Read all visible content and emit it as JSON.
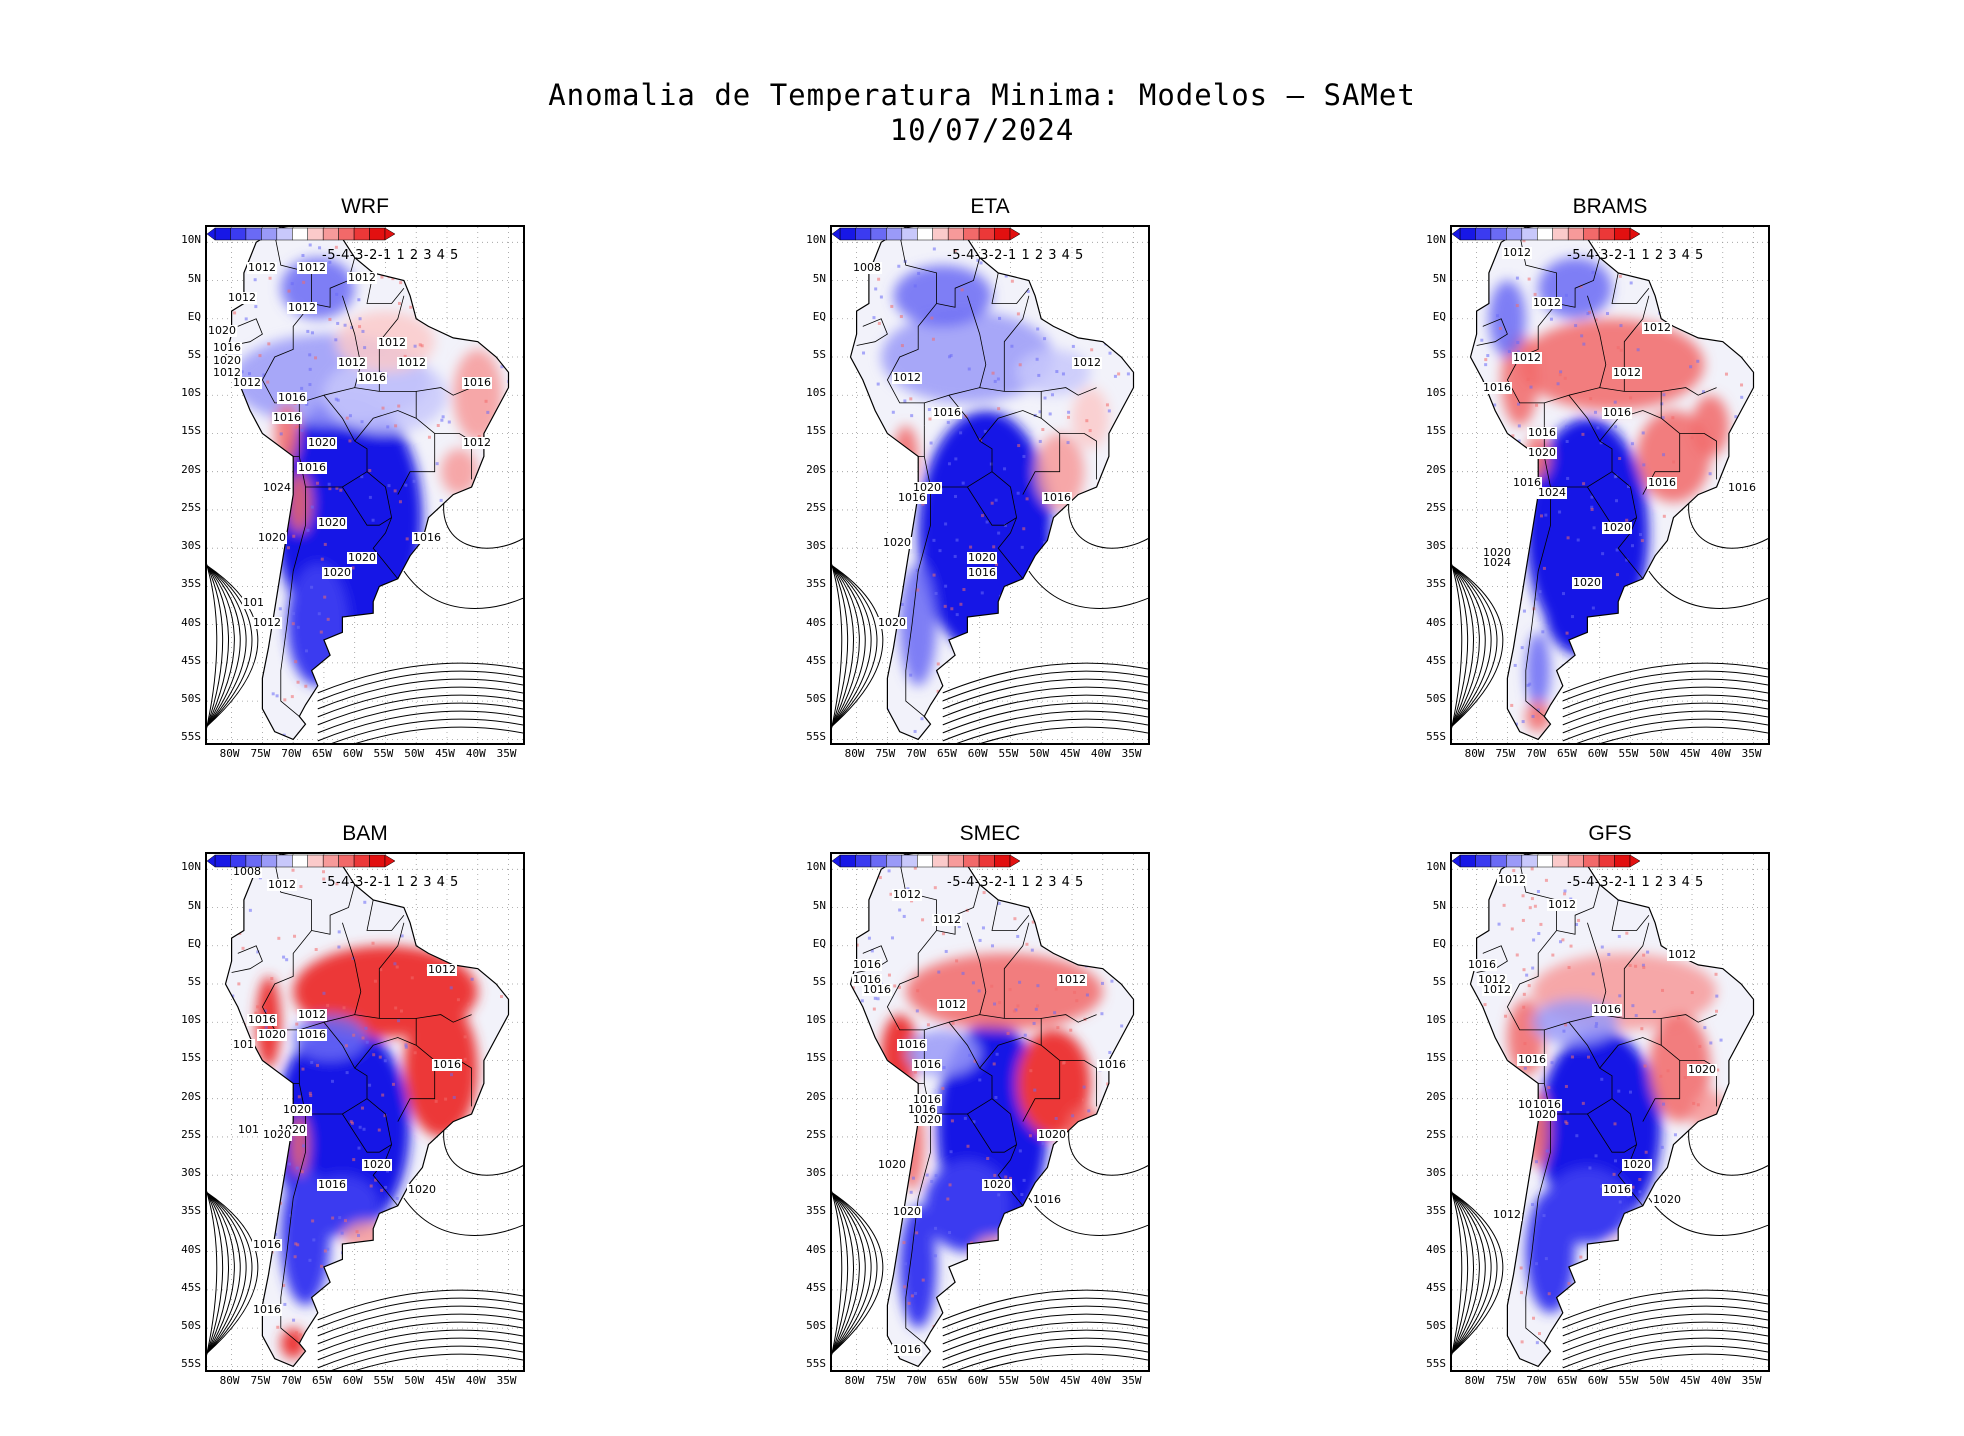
{
  "title": {
    "line1": "Anomalia de Temperatura Minima: Modelos — SAMet",
    "line2": "10/07/2024"
  },
  "axes": {
    "lat_labels": [
      "10N",
      "5N",
      "EQ",
      "5S",
      "10S",
      "15S",
      "20S",
      "25S",
      "30S",
      "35S",
      "40S",
      "45S",
      "50S",
      "55S"
    ],
    "lon_labels": [
      "80W",
      "75W",
      "70W",
      "65W",
      "60W",
      "55W",
      "50W",
      "45W",
      "40W",
      "35W"
    ]
  },
  "colorbar": {
    "labels": "-5-4-3-2-1 1 2 3 4 5",
    "values": [
      -5,
      -4,
      -3,
      -2,
      -1,
      1,
      2,
      3,
      4,
      5
    ],
    "colors": [
      "#1717e6",
      "#3b3bf0",
      "#6a6af5",
      "#9a9af8",
      "#c8c8fb",
      "#ffffff",
      "#fbcaca",
      "#f79a9a",
      "#f26969",
      "#ec3838",
      "#e21010"
    ]
  },
  "colors": {
    "cold": "#1a1ae6",
    "warm": "#e81818",
    "neutral": "#ffffff",
    "contour": "#000000"
  },
  "panels": [
    {
      "name": "WRF",
      "isobars": [
        {
          "text": "1012"
        },
        {
          "text": "1012"
        },
        {
          "text": "1012"
        },
        {
          "text": "1012"
        },
        {
          "text": "1012"
        },
        {
          "text": "1020"
        },
        {
          "text": "1016"
        },
        {
          "text": "1020"
        },
        {
          "text": "1012"
        },
        {
          "text": "1012"
        },
        {
          "text": "1012"
        },
        {
          "text": "1012"
        },
        {
          "text": "1012"
        },
        {
          "text": "1016"
        },
        {
          "text": "1016"
        },
        {
          "text": "1016"
        },
        {
          "text": "1016"
        },
        {
          "text": "1020"
        },
        {
          "text": "1012"
        },
        {
          "text": "1016"
        },
        {
          "text": "1024"
        },
        {
          "text": "1020"
        },
        {
          "text": "1020"
        },
        {
          "text": "1020"
        },
        {
          "text": "1016"
        },
        {
          "text": "1020"
        },
        {
          "text": "1012"
        },
        {
          "text": "101"
        }
      ]
    },
    {
      "name": "ETA",
      "isobars": [
        {
          "text": "1008"
        },
        {
          "text": "1012"
        },
        {
          "text": "1012"
        },
        {
          "text": "1016"
        },
        {
          "text": "1020"
        },
        {
          "text": "1016"
        },
        {
          "text": "1016"
        },
        {
          "text": "1020"
        },
        {
          "text": "1016"
        },
        {
          "text": "1020"
        },
        {
          "text": "1020"
        }
      ]
    },
    {
      "name": "BRAMS",
      "isobars": [
        {
          "text": "1012"
        },
        {
          "text": "1012"
        },
        {
          "text": "1012"
        },
        {
          "text": "1012"
        },
        {
          "text": "1012"
        },
        {
          "text": "1016"
        },
        {
          "text": "1016"
        },
        {
          "text": "1016"
        },
        {
          "text": "1020"
        },
        {
          "text": "1016"
        },
        {
          "text": "1016"
        },
        {
          "text": "1024"
        },
        {
          "text": "1016"
        },
        {
          "text": "1020"
        },
        {
          "text": "1020"
        },
        {
          "text": "1024"
        },
        {
          "text": "1020"
        }
      ]
    },
    {
      "name": "BAM",
      "isobars": [
        {
          "text": "1008"
        },
        {
          "text": "1012"
        },
        {
          "text": "1012"
        },
        {
          "text": "1012"
        },
        {
          "text": "1016"
        },
        {
          "text": "1020"
        },
        {
          "text": "1016"
        },
        {
          "text": "101"
        },
        {
          "text": "1016"
        },
        {
          "text": "1020"
        },
        {
          "text": "1020"
        },
        {
          "text": "101"
        },
        {
          "text": "1020"
        },
        {
          "text": "1020"
        },
        {
          "text": "1016"
        },
        {
          "text": "1020"
        },
        {
          "text": "1016"
        },
        {
          "text": "1016"
        }
      ]
    },
    {
      "name": "SMEC",
      "isobars": [
        {
          "text": "1012"
        },
        {
          "text": "1012"
        },
        {
          "text": "1016"
        },
        {
          "text": "1016"
        },
        {
          "text": "1016"
        },
        {
          "text": "1012"
        },
        {
          "text": "1012"
        },
        {
          "text": "1016"
        },
        {
          "text": "1016"
        },
        {
          "text": "1016"
        },
        {
          "text": "1016"
        },
        {
          "text": "1016"
        },
        {
          "text": "1020"
        },
        {
          "text": "1020"
        },
        {
          "text": "1020"
        },
        {
          "text": "1020"
        },
        {
          "text": "1016"
        },
        {
          "text": "1020"
        },
        {
          "text": "1016"
        }
      ]
    },
    {
      "name": "GFS",
      "isobars": [
        {
          "text": "1012"
        },
        {
          "text": "1012"
        },
        {
          "text": "1016"
        },
        {
          "text": "1012"
        },
        {
          "text": "1012"
        },
        {
          "text": "1012"
        },
        {
          "text": "1016"
        },
        {
          "text": "1016"
        },
        {
          "text": "1016"
        },
        {
          "text": "1016"
        },
        {
          "text": "1020"
        },
        {
          "text": "1020"
        },
        {
          "text": "1020"
        },
        {
          "text": "1016"
        },
        {
          "text": "1020"
        },
        {
          "text": "1012"
        }
      ]
    }
  ]
}
